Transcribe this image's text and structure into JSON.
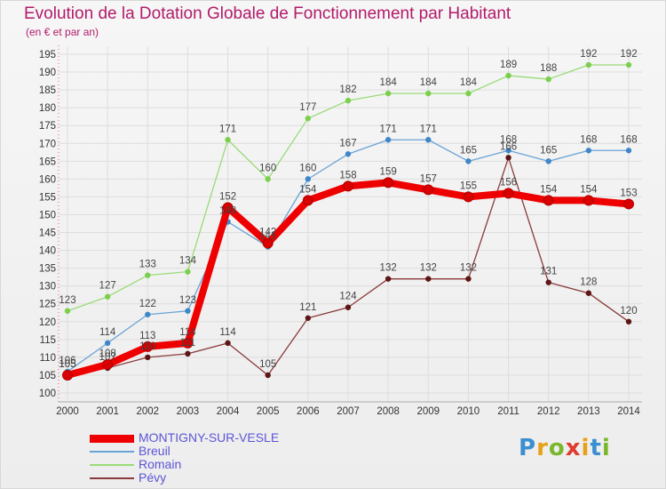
{
  "header": {
    "title": "Evolution de la Dotation Globale de Fonctionnement par Habitant",
    "subtitle": "(en € et par an)"
  },
  "logo": {
    "letters": [
      "P",
      "r",
      "o",
      "x",
      "i",
      "t",
      "i"
    ],
    "colors": [
      "#3b8fd0",
      "#e6a117",
      "#7ab72b",
      "#e03a2d",
      "#e6a117",
      "#3b8fd0",
      "#7ab72b"
    ]
  },
  "chart_data": {
    "type": "line",
    "title": "Evolution de la Dotation Globale de Fonctionnement par Habitant",
    "subtitle": "(en € et par an)",
    "xlabel": "",
    "ylabel": "",
    "x": [
      "2000",
      "2001",
      "2002",
      "2003",
      "2004",
      "2005",
      "2006",
      "2007",
      "2008",
      "2009",
      "2010",
      "2011",
      "2012",
      "2013",
      "2014"
    ],
    "ylim": [
      100,
      195
    ],
    "yticks": [
      100,
      105,
      110,
      115,
      120,
      125,
      130,
      135,
      140,
      145,
      150,
      155,
      160,
      165,
      170,
      175,
      180,
      185,
      190,
      195
    ],
    "grid": true,
    "legend_position": "bottom-left",
    "series": [
      {
        "name": "MONTIGNY-SUR-VESLE",
        "color": "#ee0000",
        "marker": "#d80000",
        "values": [
          105,
          108,
          113,
          114,
          152,
          142,
          154,
          158,
          159,
          157,
          155,
          156,
          154,
          154,
          153
        ]
      },
      {
        "name": "Breuil",
        "color": "#6aa3d6",
        "marker": "#3f87c9",
        "values": [
          106,
          114,
          122,
          123,
          148,
          141,
          160,
          167,
          171,
          171,
          165,
          168,
          165,
          168,
          168
        ]
      },
      {
        "name": "Romain",
        "color": "#99db77",
        "marker": "#7ccf4e",
        "values": [
          123,
          127,
          133,
          134,
          171,
          160,
          177,
          182,
          184,
          184,
          184,
          189,
          188,
          192,
          192
        ]
      },
      {
        "name": "Pévy",
        "color": "#8a3a3a",
        "marker": "#5e1515",
        "values": [
          105,
          107,
          110,
          111,
          114,
          105,
          121,
          124,
          132,
          132,
          132,
          166,
          131,
          128,
          120
        ]
      }
    ]
  }
}
